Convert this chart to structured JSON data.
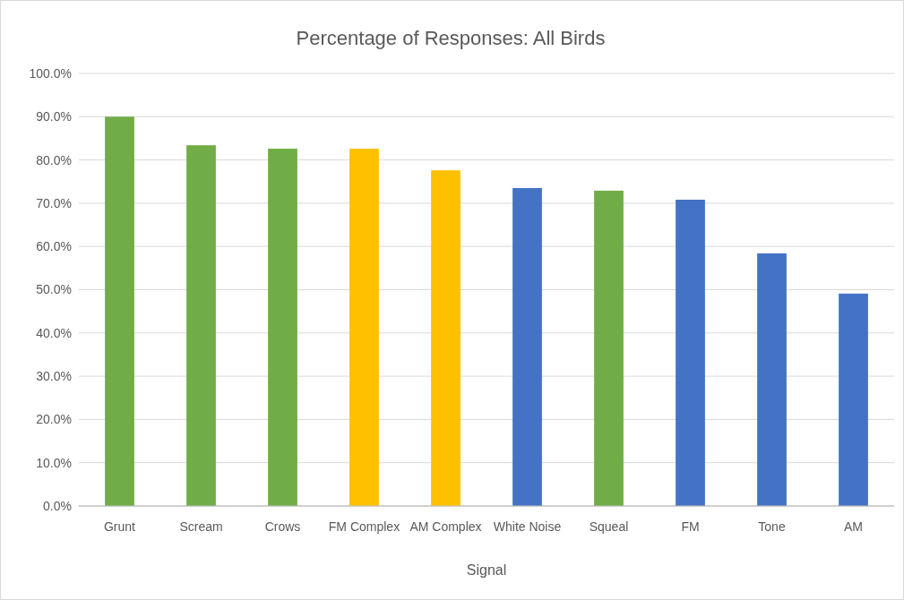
{
  "chart_data": {
    "type": "bar",
    "title": "Percentage of Responses: All Birds",
    "xlabel": "Signal",
    "categories": [
      "Grunt",
      "Scream",
      "Crows",
      "FM Complex",
      "AM Complex",
      "White Noise",
      "Squeal",
      "FM",
      "Tone",
      "AM"
    ],
    "values": [
      90.0,
      83.4,
      82.6,
      82.6,
      77.6,
      73.5,
      72.9,
      70.8,
      58.4,
      49.1
    ],
    "colors": [
      "#70ad47",
      "#70ad47",
      "#70ad47",
      "#ffc000",
      "#ffc000",
      "#4472c4",
      "#70ad47",
      "#4472c4",
      "#4472c4",
      "#4472c4"
    ],
    "ylim": [
      0,
      100
    ],
    "yticks": [
      {
        "value": 0,
        "label": "0.0%"
      },
      {
        "value": 10,
        "label": "10.0%"
      },
      {
        "value": 20,
        "label": "20.0%"
      },
      {
        "value": 30,
        "label": "30.0%"
      },
      {
        "value": 40,
        "label": "40.0%"
      },
      {
        "value": 50,
        "label": "50.0%"
      },
      {
        "value": 60,
        "label": "60.0%"
      },
      {
        "value": 70,
        "label": "70.0%"
      },
      {
        "value": 80,
        "label": "80.0%"
      },
      {
        "value": 90,
        "label": "90.0%"
      },
      {
        "value": 100,
        "label": "100.0%"
      }
    ],
    "grid": "y"
  }
}
